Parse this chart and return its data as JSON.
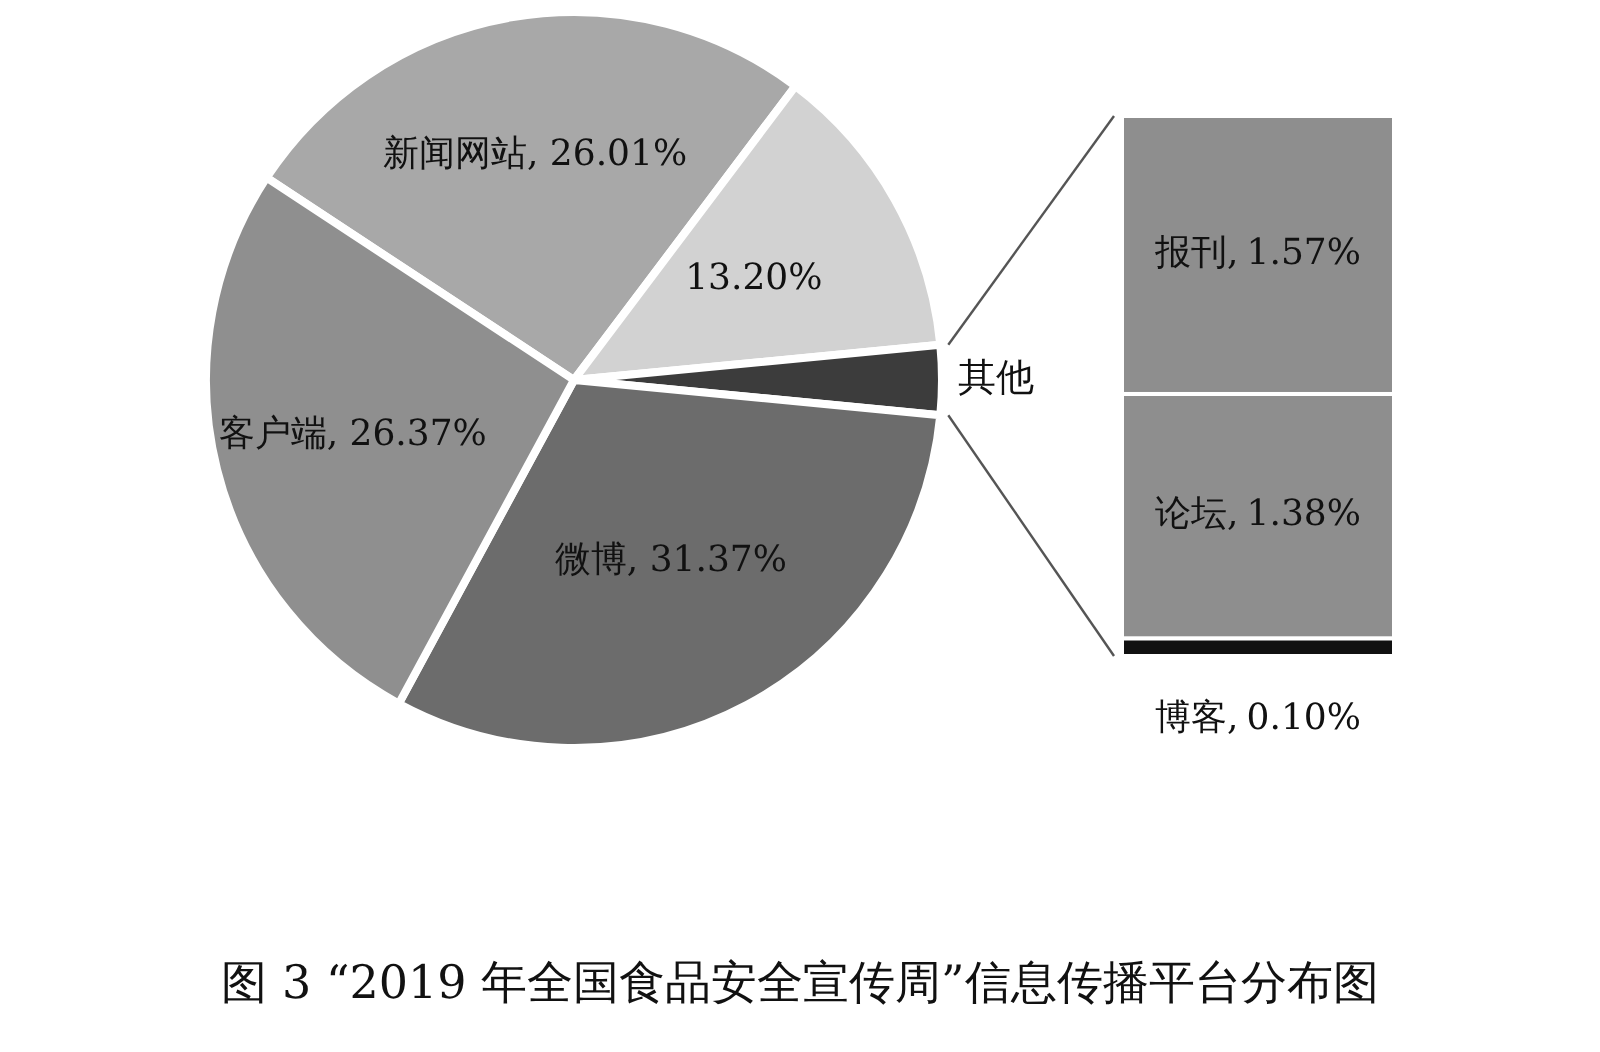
{
  "chart_data": [
    {
      "type": "pie",
      "title": "图 3 “2019 年全国食品安全宣传周”信息传播平台分布图",
      "categories": [
        "新闻网站",
        null,
        "其他",
        "微博",
        "客户端"
      ],
      "values": [
        26.01,
        13.2,
        3.05,
        31.37,
        26.37
      ],
      "value_labels": [
        "26.01%",
        "13.20%",
        null,
        "31.37%",
        "26.37%"
      ],
      "colors": [
        "#a8a8a8",
        "#d2d2d2",
        "#3c3c3c",
        "#6c6c6c",
        "#8f8f8f"
      ]
    },
    {
      "type": "bar",
      "stacked": true,
      "categories": [
        null
      ],
      "series": [
        {
          "name": "博客,",
          "color": "#111111",
          "values": [
            0.1
          ],
          "value_labels": [
            "0.10%"
          ]
        },
        {
          "name": "论坛,",
          "color": "#8e8e8e",
          "values": [
            1.38
          ],
          "value_labels": [
            "1.38%"
          ]
        },
        {
          "name": "报刊,",
          "color": "#8e8e8e",
          "values": [
            1.57
          ],
          "value_labels": [
            "1.57%"
          ]
        }
      ]
    }
  ]
}
